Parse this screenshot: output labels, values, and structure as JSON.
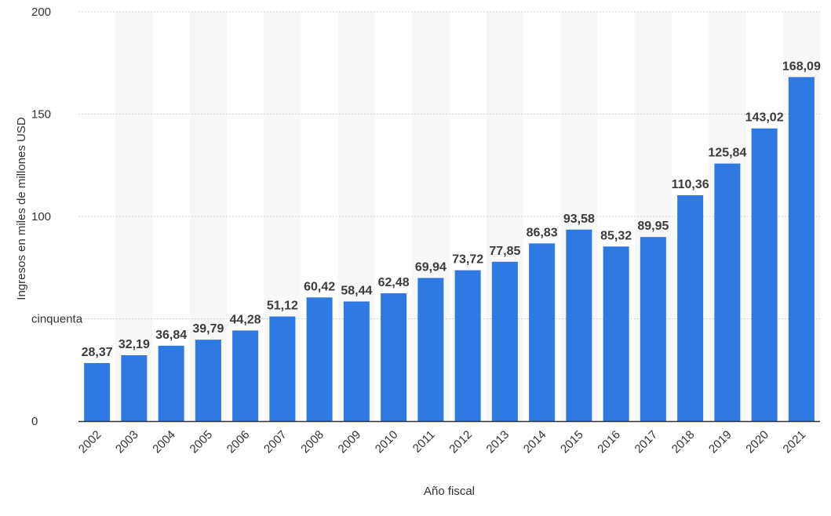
{
  "chart_data": {
    "type": "bar",
    "categories": [
      "2002",
      "2003",
      "2004",
      "2005",
      "2006",
      "2007",
      "2008",
      "2009",
      "2010",
      "2011",
      "2012",
      "2013",
      "2014",
      "2015",
      "2016",
      "2017",
      "2018",
      "2019",
      "2020",
      "2021"
    ],
    "values": [
      28.37,
      32.19,
      36.84,
      39.79,
      44.28,
      51.12,
      60.42,
      58.44,
      62.48,
      69.94,
      73.72,
      77.85,
      86.83,
      93.58,
      85.32,
      89.95,
      110.36,
      125.84,
      143.02,
      168.09
    ],
    "data_labels": [
      "28,37",
      "32,19",
      "36,84",
      "39,79",
      "44,28",
      "51,12",
      "60,42",
      "58,44",
      "62,48",
      "69,94",
      "73,72",
      "77,85",
      "86,83",
      "93,58",
      "85,32",
      "89,95",
      "110,36",
      "125,84",
      "143,02",
      "168,09"
    ],
    "xlabel": "Año fiscal",
    "ylabel": "Ingresos en miles de millones USD",
    "ylim": [
      0,
      200
    ],
    "yticks": [
      0,
      50,
      100,
      150,
      200
    ],
    "ytick_labels": [
      "0",
      "cinquenta",
      "100",
      "150",
      "200"
    ],
    "grid": true,
    "colors": {
      "bar": "#2f7ae2",
      "stripe": "#f7f7f7",
      "grid": "#c8c8c8",
      "axis": "#333333"
    }
  }
}
